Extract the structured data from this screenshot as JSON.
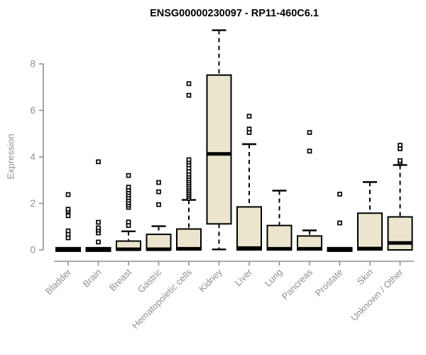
{
  "chart_data": {
    "type": "boxplot",
    "title": "ENSG00000230097 - RP11-460C6.1",
    "xlabel": "",
    "ylabel": "Expression",
    "yticks": [
      0,
      2,
      4,
      6,
      8
    ],
    "ylim": [
      0,
      9.6
    ],
    "grid": false,
    "legend": "none",
    "box_fill_color": "#ece5cd",
    "box_line_color": "#000000",
    "axis_color": "#8f8f8f",
    "categories": [
      "Bladder",
      "Brain",
      "Breast",
      "Gastric",
      "Hematopoietic cells",
      "Kidney",
      "Liver",
      "Lung",
      "Pancreas",
      "Prostate",
      "Skin",
      "Unknown / Other"
    ],
    "boxes": [
      {
        "category": "Bladder",
        "low": 0,
        "q1": 0,
        "median": 0.02,
        "q3": 0.04,
        "high": 0.04,
        "outliers": [
          0.52,
          0.67,
          0.82,
          1.47,
          1.66,
          1.75,
          2.38
        ]
      },
      {
        "category": "Brain",
        "low": 0,
        "q1": 0,
        "median": 0.02,
        "q3": 0.04,
        "high": 0.04,
        "outliers": [
          0.34,
          0.73,
          0.85,
          0.95,
          1.19,
          3.79
        ]
      },
      {
        "category": "Breast",
        "low": 0,
        "q1": 0,
        "median": 0.03,
        "q3": 0.38,
        "high": 0.8,
        "outliers": [
          1.05,
          1.2,
          1.83,
          1.93,
          2.03,
          2.14,
          2.25,
          2.36,
          2.47,
          2.58,
          2.7,
          3.2
        ]
      },
      {
        "category": "Gastric",
        "low": 0,
        "q1": 0,
        "median": 0.03,
        "q3": 0.67,
        "high": 1.02,
        "outliers": [
          1.95,
          2.5,
          2.9
        ]
      },
      {
        "category": "Hematopoietic cells",
        "low": 0,
        "q1": 0,
        "median": 0.05,
        "q3": 0.9,
        "high": 2.15,
        "outliers": [
          2.22,
          2.3,
          2.38,
          2.46,
          2.54,
          2.62,
          2.7,
          2.79,
          2.88,
          2.97,
          3.06,
          3.16,
          3.26,
          3.38,
          3.52,
          3.66,
          3.78,
          3.88,
          6.65,
          7.15
        ]
      },
      {
        "category": "Kidney",
        "low": 0.02,
        "q1": 1.12,
        "median": 4.13,
        "q3": 7.52,
        "high": 9.45,
        "outliers": []
      },
      {
        "category": "Liver",
        "low": 0,
        "q1": 0,
        "median": 0.08,
        "q3": 1.85,
        "high": 4.55,
        "outliers": [
          5.05,
          5.2,
          5.75
        ]
      },
      {
        "category": "Lung",
        "low": 0,
        "q1": 0,
        "median": 0.05,
        "q3": 1.05,
        "high": 2.55,
        "outliers": []
      },
      {
        "category": "Pancreas",
        "low": 0,
        "q1": 0,
        "median": 0.05,
        "q3": 0.6,
        "high": 0.84,
        "outliers": [
          4.25,
          5.05
        ]
      },
      {
        "category": "Prostate",
        "low": 0,
        "q1": 0,
        "median": 0.02,
        "q3": 0.04,
        "high": 0.04,
        "outliers": [
          1.16,
          2.4
        ]
      },
      {
        "category": "Skin",
        "low": 0,
        "q1": 0,
        "median": 0.06,
        "q3": 1.58,
        "high": 2.92,
        "outliers": []
      },
      {
        "category": "Unknown / Other",
        "low": 0,
        "q1": 0,
        "median": 0.3,
        "q3": 1.42,
        "high": 3.65,
        "outliers": [
          3.76,
          3.84,
          4.35,
          4.5
        ]
      }
    ]
  }
}
